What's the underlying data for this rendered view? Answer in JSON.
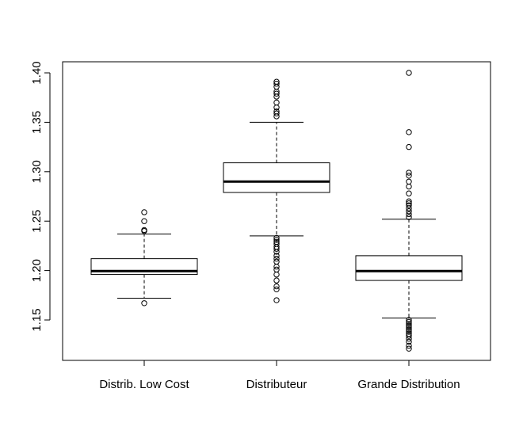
{
  "chart_data": {
    "type": "box",
    "title": "",
    "xlabel": "",
    "ylabel": "",
    "ylim": [
      1.12,
      1.41
    ],
    "yticks": [
      1.15,
      1.2,
      1.25,
      1.3,
      1.35,
      1.4
    ],
    "ytick_labels": [
      "1.15",
      "1.20",
      "1.25",
      "1.30",
      "1.35",
      "1.40"
    ],
    "categories": [
      "Distrib. Low Cost",
      "Distributeur",
      "Grande Distribution"
    ],
    "boxes": [
      {
        "name": "Distrib. Low Cost",
        "whisker_low": 1.172,
        "q1": 1.196,
        "median": 1.1995,
        "q3": 1.212,
        "whisker_high": 1.237,
        "outliers": [
          1.167,
          1.241,
          1.24,
          1.25,
          1.259
        ]
      },
      {
        "name": "Distributeur",
        "whisker_low": 1.235,
        "q1": 1.279,
        "median": 1.29,
        "q3": 1.309,
        "whisker_high": 1.35,
        "outliers": [
          1.17,
          1.181,
          1.184,
          1.19,
          1.196,
          1.201,
          1.204,
          1.209,
          1.212,
          1.215,
          1.219,
          1.222,
          1.224,
          1.227,
          1.229,
          1.231,
          1.233,
          1.356,
          1.359,
          1.361,
          1.365,
          1.37,
          1.376,
          1.379,
          1.381,
          1.386,
          1.389,
          1.391
        ]
      },
      {
        "name": "Grande Distribution",
        "whisker_low": 1.152,
        "q1": 1.19,
        "median": 1.1995,
        "q3": 1.215,
        "whisker_high": 1.252,
        "outliers": [
          1.121,
          1.124,
          1.128,
          1.131,
          1.134,
          1.136,
          1.138,
          1.14,
          1.142,
          1.144,
          1.146,
          1.148,
          1.15,
          1.254,
          1.257,
          1.26,
          1.263,
          1.266,
          1.268,
          1.27,
          1.278,
          1.285,
          1.29,
          1.296,
          1.299,
          1.325,
          1.34,
          1.4
        ]
      }
    ]
  }
}
